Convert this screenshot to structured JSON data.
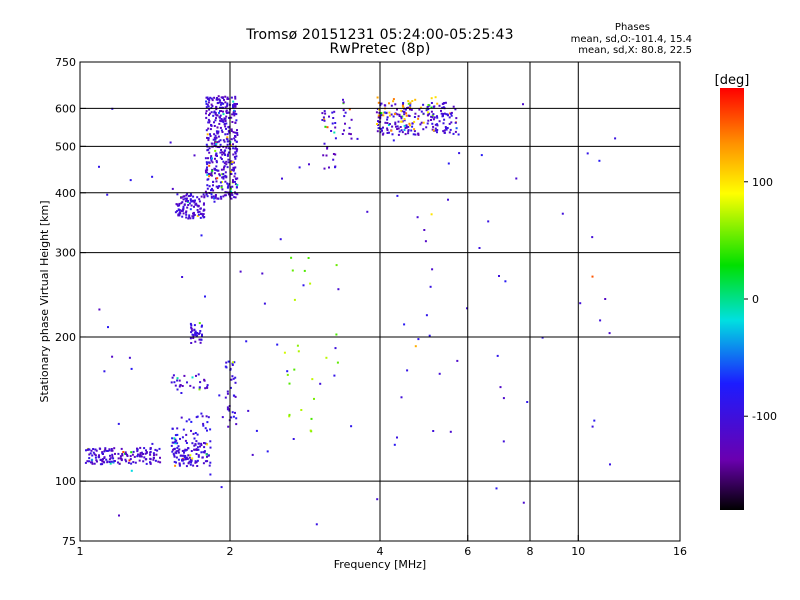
{
  "header": {
    "title": "Tromsø 20151231 05:24:00-05:25:43",
    "subtitle": "RwPretec (8p)"
  },
  "stats": {
    "heading": "Phases",
    "o_mode": "mean, sd,O:-101.4, 15.4",
    "x_mode": "mean, sd,X:  80.8, 22.5"
  },
  "chart_data": {
    "type": "scatter",
    "title": "Tromsø 20151231 05:24:00-05:25:43",
    "subtitle": "RwPretec (8p)",
    "xlabel": "Frequency [MHz]",
    "ylabel": "Stationary phase Virtual Height [km]",
    "x_scale": "log",
    "y_scale": "log",
    "xlim": [
      1,
      16
    ],
    "ylim": [
      75,
      750
    ],
    "x_ticks": [
      1,
      2,
      4,
      6,
      8,
      10,
      16
    ],
    "y_ticks": [
      75,
      100,
      200,
      300,
      400,
      500,
      600,
      750
    ],
    "x_grid": [
      2,
      4,
      6,
      8,
      10
    ],
    "y_grid": [
      100,
      200,
      300,
      400,
      500,
      600
    ],
    "colorbar": {
      "label": "[deg]",
      "range": [
        -180,
        180
      ],
      "ticks": [
        -100,
        0,
        100
      ],
      "colormap": "rainbow: black-purple-blue-cyan-green-yellow-orange-red"
    },
    "echo_regions": [
      {
        "freq": [
          1.02,
          1.45
        ],
        "height": [
          109,
          118
        ],
        "phase": -110,
        "count": 160
      },
      {
        "freq": [
          1.52,
          1.82
        ],
        "height": [
          108,
          122
        ],
        "phase": -105,
        "count": 110
      },
      {
        "freq": [
          1.52,
          1.82
        ],
        "height": [
          120,
          138
        ],
        "phase": -95,
        "count": 40
      },
      {
        "freq": [
          1.52,
          1.82
        ],
        "height": [
          156,
          168
        ],
        "phase": -110,
        "count": 30
      },
      {
        "freq": [
          1.66,
          1.76
        ],
        "height": [
          195,
          215
        ],
        "phase": -105,
        "count": 35
      },
      {
        "freq": [
          1.55,
          1.78
        ],
        "height": [
          355,
          400
        ],
        "phase": -110,
        "count": 110
      },
      {
        "freq": [
          1.78,
          2.06
        ],
        "height": [
          390,
          640
        ],
        "phase": -110,
        "count": 420
      },
      {
        "freq": [
          1.95,
          2.05
        ],
        "height": [
          130,
          180
        ],
        "phase": -100,
        "count": 35
      },
      {
        "freq": [
          3.05,
          3.25
        ],
        "height": [
          450,
          600
        ],
        "phase": -110,
        "count": 30
      },
      {
        "freq": [
          3.35,
          3.5
        ],
        "height": [
          520,
          640
        ],
        "phase": -110,
        "count": 15
      },
      {
        "freq": [
          3.9,
          5.7
        ],
        "height": [
          530,
          620
        ],
        "phase": -110,
        "count": 200
      },
      {
        "freq": [
          3.9,
          5.2
        ],
        "height": [
          540,
          640
        ],
        "phase": 120,
        "count": 40
      },
      {
        "freq": [
          2.5,
          3.3
        ],
        "height": [
          120,
          300
        ],
        "phase": 60,
        "count": 25
      },
      {
        "freq": [
          1.08,
          11.8
        ],
        "height": [
          80,
          660
        ],
        "phase": -100,
        "count": 110
      }
    ]
  }
}
